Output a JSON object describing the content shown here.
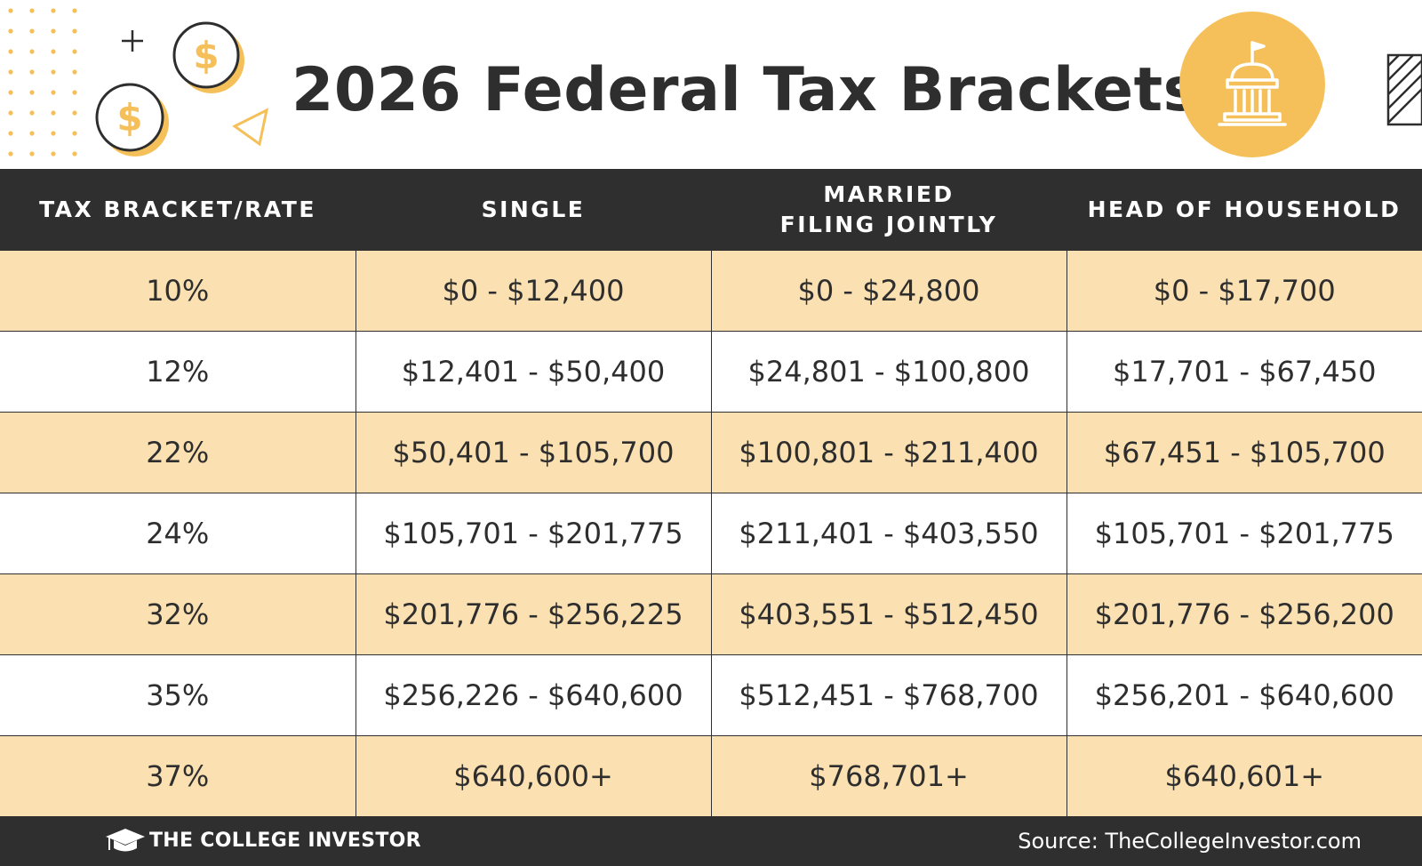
{
  "header": {
    "title": "2026 Federal Tax Brackets",
    "icons": [
      "dollar-coin-icon",
      "capitol-building-icon"
    ]
  },
  "table": {
    "headers": [
      {
        "line1": "TAX BRACKET/RATE",
        "line2": ""
      },
      {
        "line1": "SINGLE",
        "line2": ""
      },
      {
        "line1": "MARRIED",
        "line2": "FILING JOINTLY"
      },
      {
        "line1": "HEAD OF HOUSEHOLD",
        "line2": ""
      }
    ],
    "rows": [
      {
        "rate": "10%",
        "single": "$0 - $12,400",
        "married": "$0 - $24,800",
        "head": "$0 - $17,700"
      },
      {
        "rate": "12%",
        "single": "$12,401 - $50,400",
        "married": "$24,801 - $100,800",
        "head": "$17,701 - $67,450"
      },
      {
        "rate": "22%",
        "single": "$50,401 - $105,700",
        "married": "$100,801 - $211,400",
        "head": "$67,451 - $105,700"
      },
      {
        "rate": "24%",
        "single": "$105,701 - $201,775",
        "married": "$211,401 - $403,550",
        "head": "$105,701 - $201,775"
      },
      {
        "rate": "32%",
        "single": "$201,776 - $256,225",
        "married": "$403,551 - $512,450",
        "head": "$201,776 - $256,200"
      },
      {
        "rate": "35%",
        "single": "$256,226 - $640,600",
        "married": "$512,451 - $768,700",
        "head": "$256,201 - $640,600"
      },
      {
        "rate": "37%",
        "single": "$640,600+",
        "married": "$768,701+",
        "head": "$640,601+"
      }
    ]
  },
  "footer": {
    "brand": "THE COLLEGE INVESTOR",
    "source": "Source: TheCollegeInvestor.com"
  },
  "colors": {
    "dark": "#2f2f2f",
    "accent_gold": "#f5c05a",
    "row_tint": "#fbe1b2"
  }
}
